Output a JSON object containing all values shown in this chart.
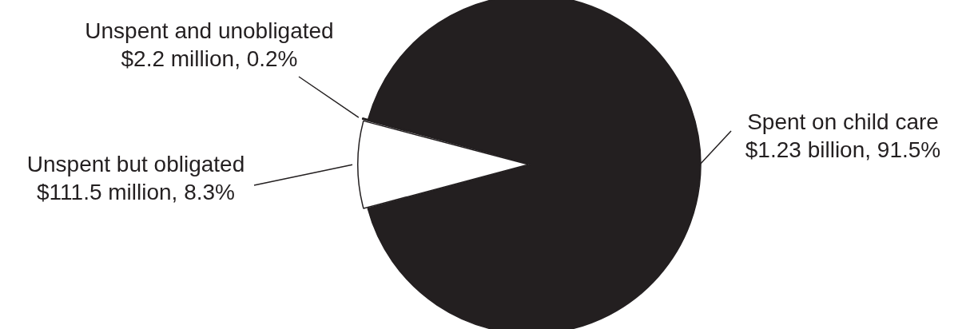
{
  "chart_data": {
    "type": "pie",
    "categories": [
      "Unspent but obligated",
      "Unspent and unobligated",
      "Spent on child care"
    ],
    "values": [
      8.3,
      0.2,
      91.5
    ],
    "value_labels": [
      "$111.5 million, 8.3%",
      "$2.2 million, 0.2%",
      "$1.23 billion, 91.5%"
    ],
    "colors": [
      "#ffffff",
      "#ffffff",
      "#231f20"
    ],
    "legend": false
  }
}
